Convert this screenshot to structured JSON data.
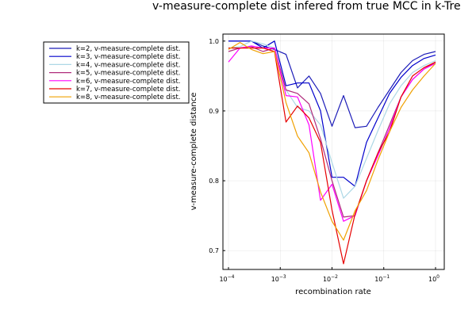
{
  "chart_data": {
    "type": "line",
    "title": "v-measure-complete dist infered from true MCC in k-Tre",
    "xlabel": "recombination rate",
    "ylabel": "v-measure-complete distance",
    "xscale": "log10",
    "xlim": [
      0.0001,
      1
    ],
    "ylim": [
      0.673,
      1.01
    ],
    "grid": true,
    "legend_position": "top-left outside plot",
    "x_ticks": [
      {
        "base": "10",
        "exp": "−4"
      },
      {
        "base": "10",
        "exp": "−3"
      },
      {
        "base": "10",
        "exp": "−2"
      },
      {
        "base": "10",
        "exp": "−1"
      },
      {
        "base": "10",
        "exp": "0"
      }
    ],
    "y_ticks": [
      "0.7",
      "0.8",
      "0.9",
      "1.0"
    ],
    "y_tick_values": [
      0.7,
      0.8,
      0.9,
      1.0
    ],
    "x": [
      0.0001,
      0.0001668,
      0.0002783,
      0.0004642,
      0.0007743,
      0.0012915,
      0.0021544,
      0.0035938,
      0.0059948,
      0.01,
      0.016681,
      0.0278256,
      0.0464159,
      0.0774264,
      0.129155,
      0.2154435,
      0.3593814,
      0.5994843,
      1.0
    ],
    "series": [
      {
        "name": "k=2, v-measure-complete dist.",
        "color": "#1c1cb8",
        "values": [
          1.0,
          1.0,
          1.0,
          0.993,
          0.988,
          0.981,
          0.933,
          0.95,
          0.925,
          0.878,
          0.922,
          0.876,
          0.878,
          0.905,
          0.93,
          0.955,
          0.972,
          0.981,
          0.985
        ]
      },
      {
        "name": "k=3, v-measure-complete dist.",
        "color": "#0000cc",
        "values": [
          1.0,
          1.0,
          1.0,
          0.99,
          1.0,
          0.936,
          0.94,
          0.94,
          0.9,
          0.805,
          0.805,
          0.792,
          0.855,
          0.89,
          0.925,
          0.948,
          0.965,
          0.975,
          0.98
        ]
      },
      {
        "name": "k=4, v-measure-complete dist.",
        "color": "#add8e6",
        "values": [
          0.99,
          0.992,
          1.0,
          0.996,
          0.99,
          0.93,
          0.905,
          0.9,
          0.88,
          0.826,
          0.775,
          0.792,
          0.832,
          0.872,
          0.91,
          0.936,
          0.955,
          0.965,
          0.972
        ]
      },
      {
        "name": "k=5, v-measure-complete dist.",
        "color": "#b02c7c",
        "values": [
          0.985,
          0.99,
          0.992,
          0.985,
          0.99,
          0.93,
          0.925,
          0.91,
          0.86,
          0.8,
          0.748,
          0.75,
          0.8,
          0.84,
          0.88,
          0.92,
          0.945,
          0.96,
          0.97
        ]
      },
      {
        "name": "k=6, v-measure-complete dist.",
        "color": "#ff00ff",
        "values": [
          0.97,
          0.99,
          0.993,
          0.99,
          0.99,
          0.922,
          0.92,
          0.88,
          0.772,
          0.795,
          0.742,
          0.75,
          0.8,
          0.836,
          0.875,
          0.92,
          0.945,
          0.96,
          0.968
        ]
      },
      {
        "name": "k=7, v-measure-complete dist.",
        "color": "#e60000",
        "values": [
          0.99,
          0.99,
          0.99,
          0.99,
          0.985,
          0.884,
          0.907,
          0.89,
          0.855,
          0.758,
          0.681,
          0.752,
          0.8,
          0.84,
          0.87,
          0.92,
          0.95,
          0.962,
          0.97
        ]
      },
      {
        "name": "k=8, v-measure-complete dist.",
        "color": "#f0a000",
        "values": [
          0.988,
          0.998,
          0.988,
          0.982,
          0.985,
          0.912,
          0.864,
          0.84,
          0.784,
          0.742,
          0.715,
          0.757,
          0.786,
          0.83,
          0.87,
          0.905,
          0.93,
          0.95,
          0.968
        ]
      }
    ]
  }
}
